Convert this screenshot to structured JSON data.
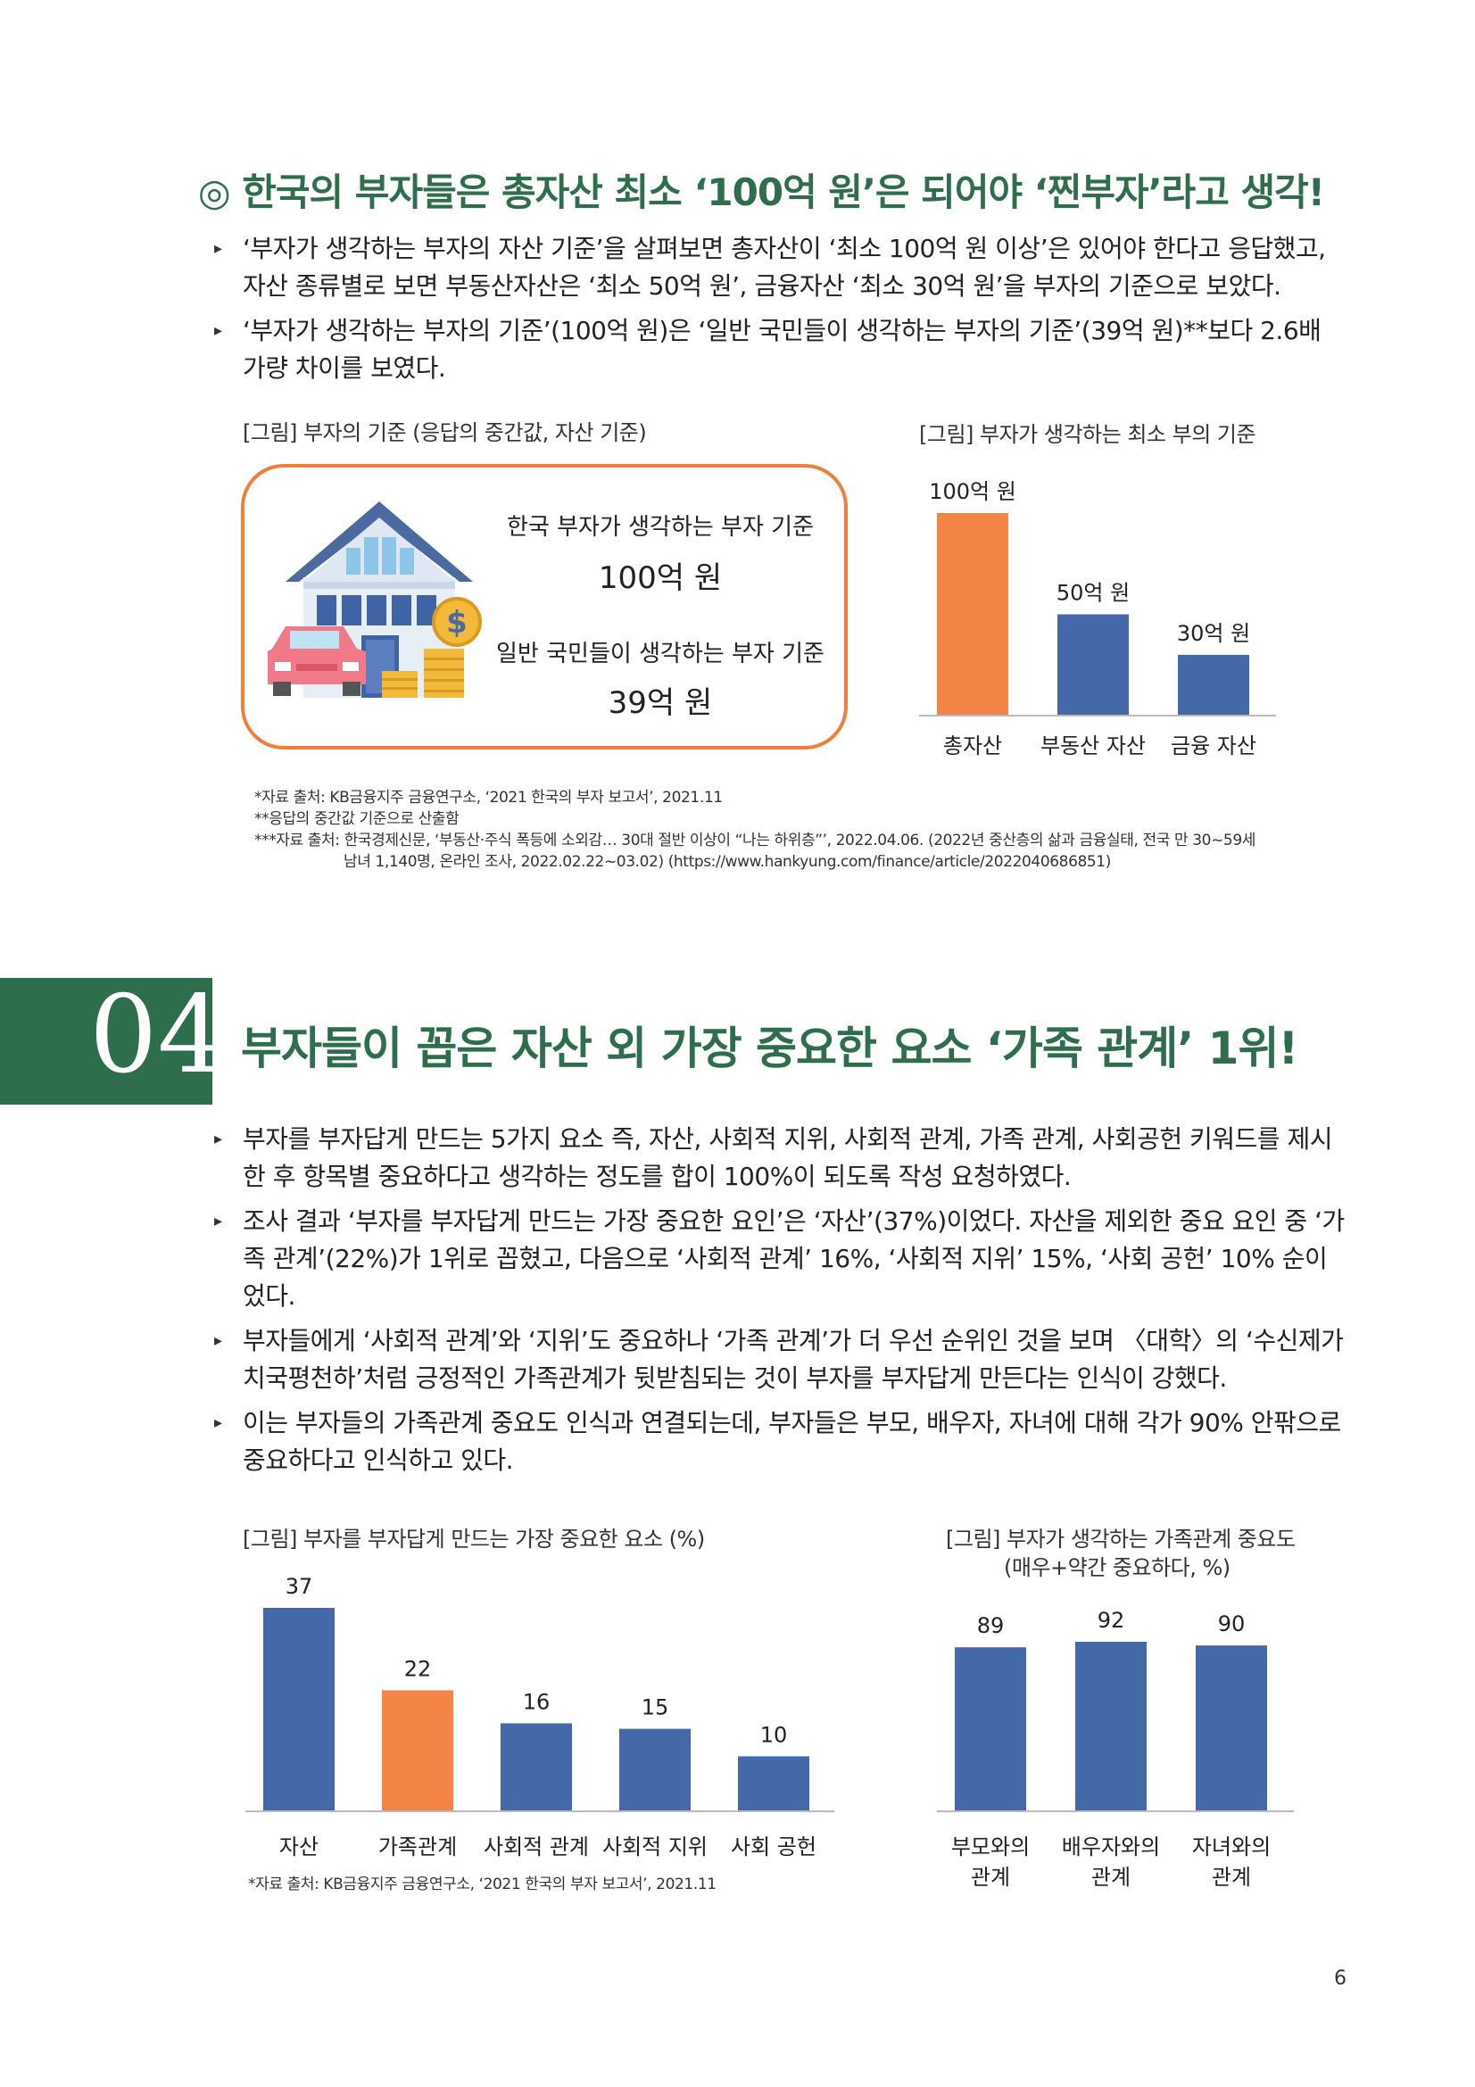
{
  "section1": {
    "title": "◎ 한국의 부자들은 총자산 최소 ‘100억 원’은 되어야 ‘찐부자’라고 생각!",
    "bullets": [
      "‘부자가 생각하는 부자의 자산 기준’을 살펴보면 총자산이 ‘최소 100억 원 이상’은 있어야 한다고 응답했고, 자산 종류별로 보면 부동산자산은 ‘최소 50억 원’, 금융자산 ‘최소 30억 원’을 부자의 기준으로 보았다.",
      "‘부자가 생각하는 부자의 기준’(100억 원)은 ‘일반 국민들이 생각하는 부자의 기준’(39억 원)**보다 2.6배 가량 차이를 보였다."
    ],
    "fig1_caption": "[그림] 부자의 기준 (응답의 중간값, 자산 기준)",
    "fig1": {
      "label1": "한국 부자가 생각하는 부자 기준",
      "value1": "100억 원",
      "label2": "일반 국민들이 생각하는 부자 기준",
      "value2": "39억 원"
    },
    "fig2_caption": "[그림] 부자가 생각하는 최소 부의 기준",
    "notes": [
      "*자료 출처: KB금융지주 금융연구소, ‘2021 한국의 부자 보고서’, 2021.11",
      "**응답의 중간값 기준으로 산출함",
      "***자료 출처: 한국경제신문, ‘부동산·주식 폭등에 소외감… 30대 절반 이상이 “나는 하위층”’, 2022.04.06. (2022년 중산층의 삶과 금융실태, 전국 만 30~59세",
      "남녀 1,140명, 온라인 조사, 2022.02.22~03.02) (https://www.hankyung.com/finance/article/2022040686851)"
    ]
  },
  "section2": {
    "number": "04",
    "title": "부자들이 꼽은 자산 외 가장 중요한 요소 ‘가족 관계’ 1위!",
    "bullets": [
      "부자를 부자답게 만드는 5가지 요소 즉, 자산, 사회적 지위, 사회적 관계, 가족 관계, 사회공헌 키워드를 제시한 후 항목별 중요하다고 생각하는 정도를 합이 100%이 되도록 작성 요청하였다.",
      "조사 결과 ‘부자를 부자답게 만드는 가장 중요한 요인’은 ‘자산’(37%)이었다. 자산을 제외한 중요 요인 중 ‘가족 관계’(22%)가 1위로 꼽혔고, 다음으로 ‘사회적 관계’ 16%, ‘사회적 지위’ 15%, ‘사회 공헌’ 10% 순이었다.",
      "부자들에게 ‘사회적 관계’와 ‘지위’도 중요하나 ‘가족 관계’가 더 우선 순위인 것을 보며 〈대학〉의 ‘수신제가치국평천하’처럼 긍정적인 가족관계가 뒷받침되는 것이 부자를 부자답게 만든다는 인식이 강했다.",
      "이는 부자들의 가족관계 중요도 인식과 연결되는데, 부자들은 부모, 배우자, 자녀에 대해 각가 90% 안팎으로 중요하다고 인식하고 있다."
    ],
    "fig3_caption": "[그림] 부자를 부자답게 만드는 가장 중요한 요소 (%)",
    "fig4_caption_1": "[그림] 부자가 생각하는 가족관계 중요도",
    "fig4_caption_2": "(매우+약간 중요하다, %)",
    "note": "*자료 출처: KB금융지주 금융연구소, ‘2021 한국의 부자 보고서’, 2021.11"
  },
  "page_number": "6",
  "colors": {
    "green": "#2e6e4c",
    "orange": "#f28445",
    "blue": "#4569a8",
    "box_border": "#ef7f3a"
  },
  "chart_data": [
    {
      "type": "bar",
      "categories": [
        "총자산",
        "부동산 자산",
        "금융 자산"
      ],
      "values": [
        100,
        50,
        30
      ],
      "data_labels": [
        "100억 원",
        "50억 원",
        "30억 원"
      ],
      "title": "",
      "ylim": [
        0,
        100
      ],
      "highlight_index": 0
    },
    {
      "type": "bar",
      "categories": [
        "자산",
        "가족관계",
        "사회적 관계",
        "사회적 지위",
        "사회 공헌"
      ],
      "values": [
        37,
        22,
        16,
        15,
        10
      ],
      "title": "",
      "ylim": [
        0,
        37
      ],
      "highlight_index": 1
    },
    {
      "type": "bar",
      "categories": [
        [
          "부모와의",
          "관계"
        ],
        [
          "배우자와의",
          "관계"
        ],
        [
          "자녀와의",
          "관계"
        ]
      ],
      "values": [
        89,
        92,
        90
      ],
      "title": "",
      "ylim": [
        0,
        92
      ]
    }
  ]
}
